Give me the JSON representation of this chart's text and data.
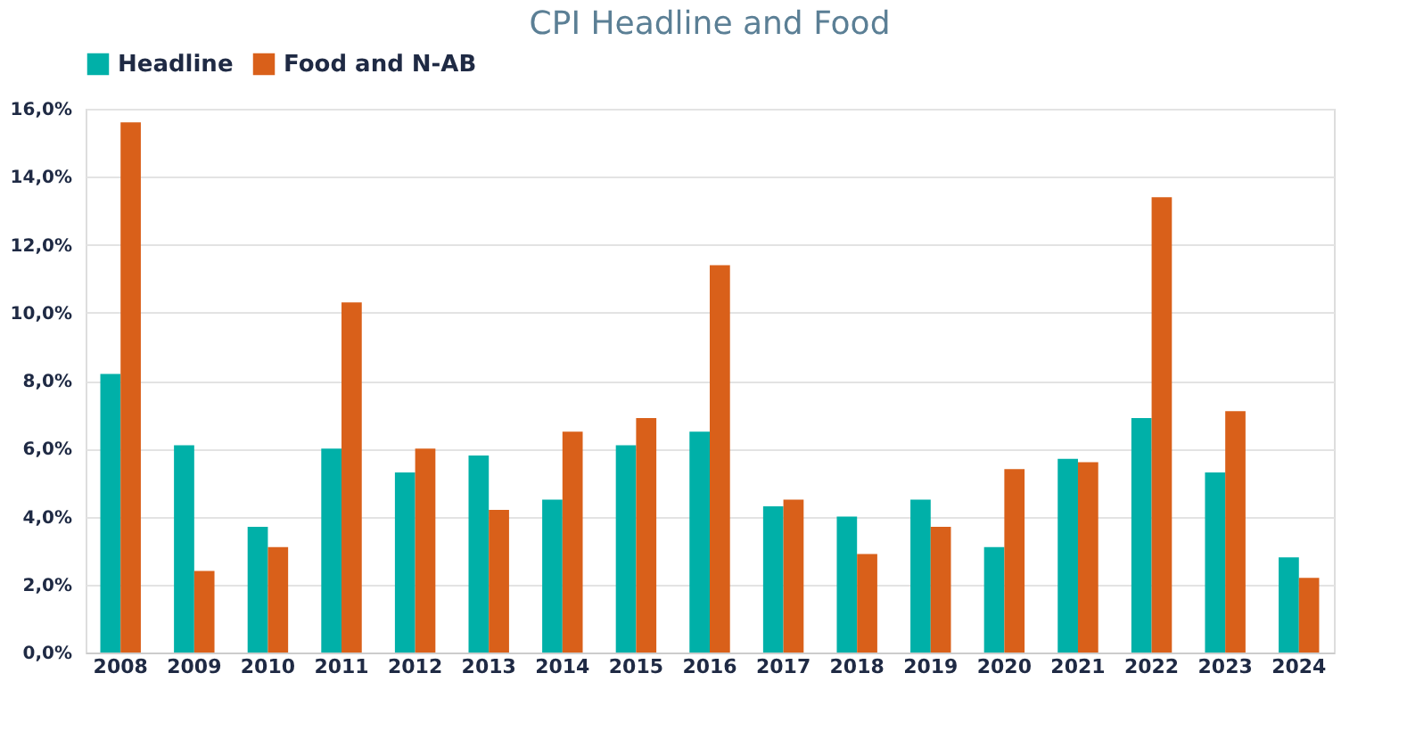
{
  "chart_data": {
    "type": "bar",
    "title": "CPI Headline and Food",
    "categories": [
      "2008",
      "2009",
      "2010",
      "2011",
      "2012",
      "2013",
      "2014",
      "2015",
      "2016",
      "2017",
      "2018",
      "2019",
      "2020",
      "2021",
      "2022",
      "2023",
      "2024"
    ],
    "series": [
      {
        "name": "Headline",
        "color": "#00b0a8",
        "values": [
          8.2,
          6.1,
          3.7,
          6.0,
          5.3,
          5.8,
          4.5,
          6.1,
          6.5,
          4.3,
          4.0,
          4.5,
          3.1,
          5.7,
          6.9,
          5.3,
          2.8
        ]
      },
      {
        "name": "Food and N-AB",
        "color": "#d9601a",
        "values": [
          15.6,
          2.4,
          3.1,
          10.3,
          6.0,
          4.2,
          6.5,
          6.9,
          11.4,
          4.5,
          2.9,
          3.7,
          5.4,
          5.6,
          13.4,
          7.1,
          2.2
        ]
      }
    ],
    "ylim": [
      0,
      16
    ],
    "yticks": [
      {
        "value": 0,
        "label": "0,0%"
      },
      {
        "value": 2,
        "label": "2,0%"
      },
      {
        "value": 4,
        "label": "4,0%"
      },
      {
        "value": 6,
        "label": "6,0%"
      },
      {
        "value": 8,
        "label": "8,0%"
      },
      {
        "value": 10,
        "label": "10,0%"
      },
      {
        "value": 12,
        "label": "12,0%"
      },
      {
        "value": 14,
        "label": "14,0%"
      },
      {
        "value": 16,
        "label": "16,0%"
      }
    ],
    "grid": "y",
    "legend": "top"
  }
}
